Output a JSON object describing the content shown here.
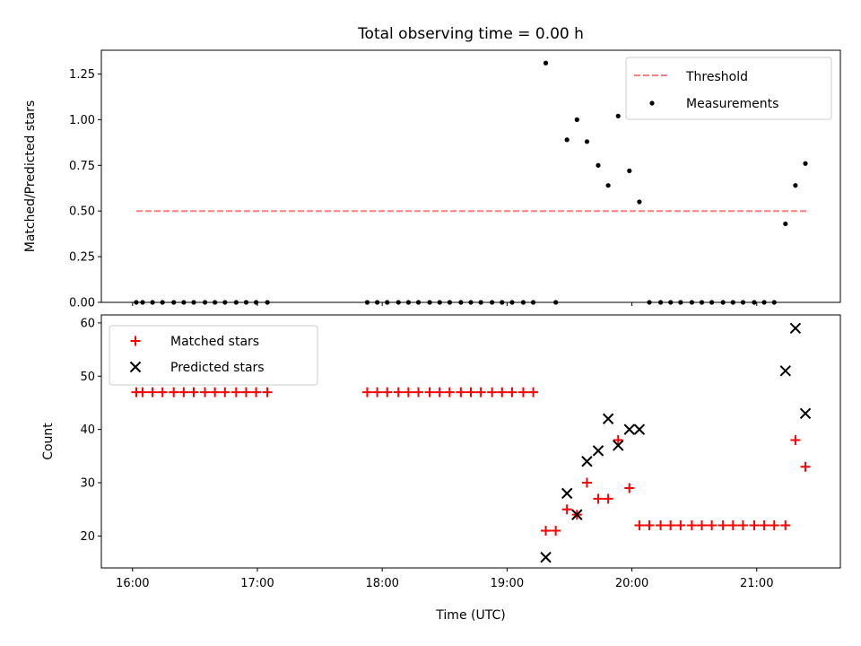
{
  "colors": {
    "threshold": "#ff7f7f",
    "measurement": "#000000",
    "matched": "#ff0000",
    "predicted": "#000000",
    "axes": "#000000",
    "legend_border": "#cccccc"
  },
  "chart_data": [
    {
      "type": "scatter",
      "title": "Total observing time = 0.00 h",
      "xlabel": "",
      "ylabel": "Matched/Predicted stars",
      "xlim": [
        15.75,
        21.67
      ],
      "ylim": [
        0,
        1.38
      ],
      "yticks": [
        0.0,
        0.25,
        0.5,
        0.75,
        1.0,
        1.25
      ],
      "ytick_labels": [
        "0.00",
        "0.25",
        "0.50",
        "0.75",
        "1.00",
        "1.25"
      ],
      "xticks": [
        16,
        17,
        18,
        19,
        20,
        21
      ],
      "xtick_labels": [
        "",
        "",
        "",
        "",
        "",
        ""
      ],
      "grid": false,
      "legend": "top-right",
      "series": [
        {
          "name": "Threshold",
          "kind": "line",
          "style": "dashed",
          "x": [
            16.03,
            21.42
          ],
          "y": [
            0.5,
            0.5
          ]
        },
        {
          "name": "Measurements",
          "kind": "scatter",
          "x": [
            16.03,
            16.08,
            16.16,
            16.24,
            16.33,
            16.41,
            16.49,
            16.58,
            16.66,
            16.74,
            16.83,
            16.91,
            16.99,
            17.08,
            17.88,
            17.96,
            18.04,
            18.13,
            18.21,
            18.29,
            18.38,
            18.46,
            18.54,
            18.63,
            18.71,
            18.79,
            18.88,
            18.96,
            19.04,
            19.13,
            19.21,
            19.31,
            19.39,
            19.48,
            19.56,
            19.64,
            19.73,
            19.81,
            19.89,
            19.98,
            20.06,
            20.14,
            20.23,
            20.31,
            20.39,
            20.48,
            20.56,
            20.64,
            20.73,
            20.81,
            20.89,
            20.98,
            21.06,
            21.14,
            21.23,
            21.31,
            21.39
          ],
          "y": [
            0,
            0,
            0,
            0,
            0,
            0,
            0,
            0,
            0,
            0,
            0,
            0,
            0,
            0,
            0,
            0,
            0,
            0,
            0,
            0,
            0,
            0,
            0,
            0,
            0,
            0,
            0,
            0,
            0,
            0,
            0,
            1.31,
            0,
            0.89,
            1.0,
            0.88,
            0.75,
            0.64,
            1.02,
            0.72,
            0.55,
            0,
            0,
            0,
            0,
            0,
            0,
            0,
            0,
            0,
            0,
            0,
            0,
            0,
            0.43,
            0.64,
            0.76
          ]
        }
      ]
    },
    {
      "type": "scatter",
      "title": "",
      "xlabel": "Time (UTC)",
      "ylabel": "Count",
      "xlim": [
        15.75,
        21.67
      ],
      "ylim": [
        14,
        61.5
      ],
      "yticks": [
        20,
        30,
        40,
        50,
        60
      ],
      "ytick_labels": [
        "20",
        "30",
        "40",
        "50",
        "60"
      ],
      "xticks": [
        16,
        17,
        18,
        19,
        20,
        21
      ],
      "xtick_labels": [
        "16:00",
        "17:00",
        "18:00",
        "19:00",
        "20:00",
        "21:00"
      ],
      "grid": false,
      "legend": "top-left",
      "series": [
        {
          "name": "Matched stars",
          "marker": "plus",
          "x": [
            16.03,
            16.08,
            16.16,
            16.24,
            16.33,
            16.41,
            16.49,
            16.58,
            16.66,
            16.74,
            16.83,
            16.91,
            16.99,
            17.08,
            17.88,
            17.96,
            18.04,
            18.13,
            18.21,
            18.29,
            18.38,
            18.46,
            18.54,
            18.63,
            18.71,
            18.79,
            18.88,
            18.96,
            19.04,
            19.13,
            19.21,
            19.31,
            19.39,
            19.48,
            19.56,
            19.64,
            19.73,
            19.81,
            19.89,
            19.98,
            20.06,
            20.14,
            20.23,
            20.31,
            20.39,
            20.48,
            20.56,
            20.64,
            20.73,
            20.81,
            20.89,
            20.98,
            21.06,
            21.14,
            21.23,
            21.31,
            21.39
          ],
          "y": [
            47,
            47,
            47,
            47,
            47,
            47,
            47,
            47,
            47,
            47,
            47,
            47,
            47,
            47,
            47,
            47,
            47,
            47,
            47,
            47,
            47,
            47,
            47,
            47,
            47,
            47,
            47,
            47,
            47,
            47,
            47,
            21,
            21,
            25,
            24,
            30,
            27,
            27,
            38,
            29,
            22,
            22,
            22,
            22,
            22,
            22,
            22,
            22,
            22,
            22,
            22,
            22,
            22,
            22,
            22,
            38,
            33
          ]
        },
        {
          "name": "Predicted stars",
          "marker": "x",
          "x": [
            19.31,
            19.48,
            19.56,
            19.64,
            19.73,
            19.81,
            19.89,
            19.98,
            20.06,
            21.23,
            21.31,
            21.39
          ],
          "y": [
            16,
            28,
            24,
            34,
            36,
            42,
            37,
            40,
            40,
            51,
            59,
            43
          ]
        }
      ]
    }
  ]
}
